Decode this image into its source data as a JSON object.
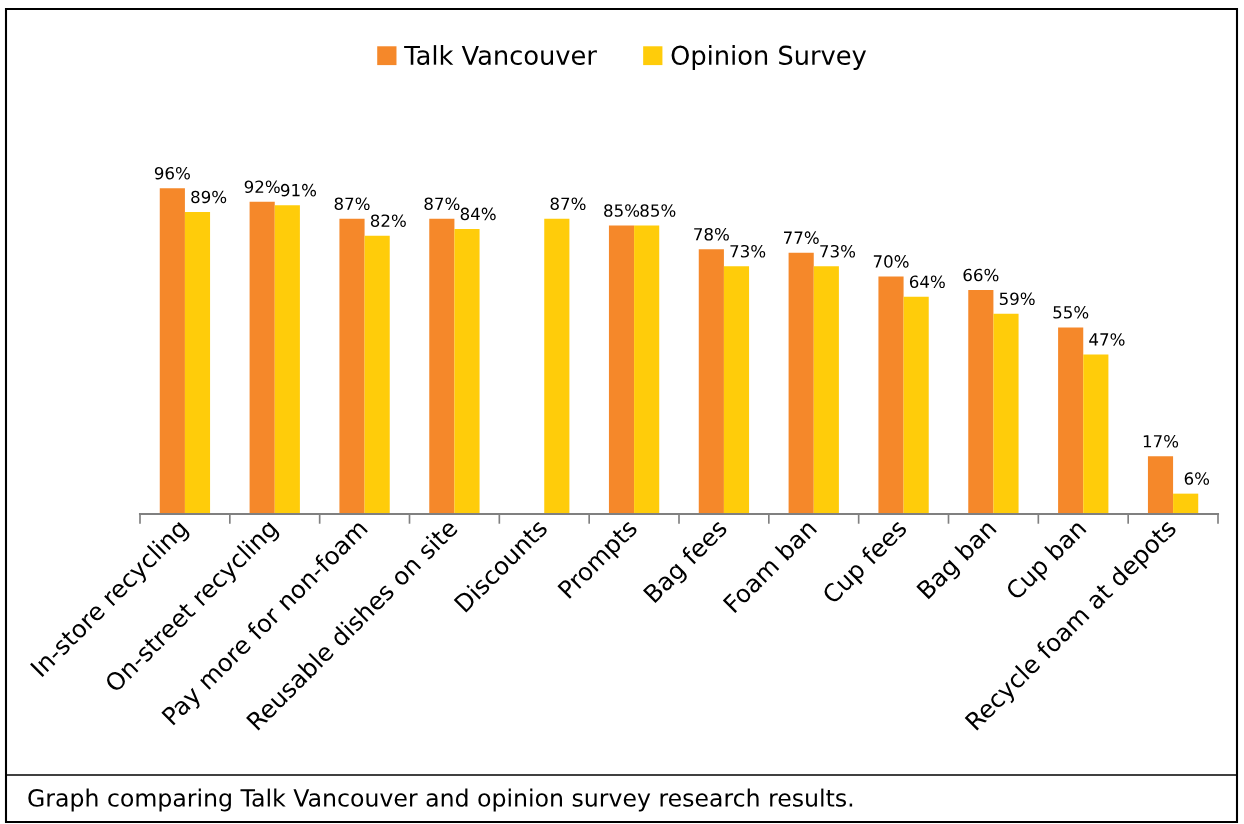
{
  "chart_data": {
    "type": "bar",
    "legend": "top",
    "tick_labels": "x",
    "categories": [
      "In-store recycling",
      "On-street recycling",
      "Pay more for non-foam",
      "Reusable dishes on site",
      "Discounts",
      "Prompts",
      "Bag fees",
      "Foam ban",
      "Cup fees",
      "Bag ban",
      "Cup ban",
      "Recycle foam at depots"
    ],
    "series": [
      {
        "name": "Talk Vancouver",
        "color": "#f5882a",
        "values": [
          96,
          92,
          87,
          87,
          null,
          85,
          78,
          77,
          70,
          66,
          55,
          17
        ],
        "value_labels": [
          "96%",
          "92%",
          "87%",
          "87%",
          null,
          "85%",
          "78%",
          "77%",
          "70%",
          "66%",
          "55%",
          "17%"
        ]
      },
      {
        "name": "Opinion Survey",
        "color": "#ffcc0a",
        "values": [
          89,
          91,
          82,
          84,
          87,
          85,
          73,
          73,
          64,
          59,
          47,
          6
        ],
        "value_labels": [
          "89%",
          "91%",
          "82%",
          "84%",
          "87%",
          "85%",
          "73%",
          "73%",
          "64%",
          "59%",
          "47%",
          "6%"
        ]
      }
    ],
    "annotations": [
      "Graph comparing Talk Vancouver and opinion survey research results."
    ]
  }
}
